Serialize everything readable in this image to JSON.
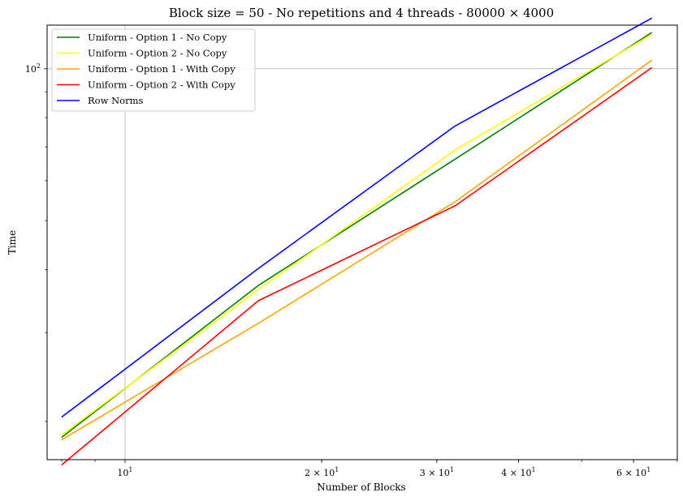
{
  "chart_data": {
    "type": "line",
    "title": "Block size = 50 - No repetitions and 4 threads - 80000 × 4000",
    "xlabel": "Number of Blocks",
    "ylabel": "Time",
    "x_scale": "log",
    "y_scale": "log",
    "xlim": [
      7.6,
      70
    ],
    "ylim": [
      16.8,
      122
    ],
    "grid": true,
    "legend_position": "top-left",
    "x_ticks": [
      {
        "value": 10,
        "label": "10¹",
        "mantissa": "",
        "exp": "1"
      },
      {
        "value": 20,
        "label": "2 × 10¹",
        "mantissa": "2 × ",
        "exp": "1"
      },
      {
        "value": 30,
        "label": "3 × 10¹",
        "mantissa": "3 × ",
        "exp": "1"
      },
      {
        "value": 40,
        "label": "4 × 10¹",
        "mantissa": "4 × ",
        "exp": "1"
      },
      {
        "value": 60,
        "label": "6 × 10¹",
        "mantissa": "6 × ",
        "exp": "1"
      }
    ],
    "y_ticks": [
      {
        "value": 100,
        "label": "10²",
        "mantissa": "",
        "exp": "2"
      }
    ],
    "x": [
      8,
      16,
      32,
      64
    ],
    "series": [
      {
        "name": "Uniform - Option 1 - No Copy",
        "color": "#008000",
        "values": [
          18.6,
          37.2,
          66.2,
          118.0
        ]
      },
      {
        "name": "Uniform - Option 2 - No Copy",
        "color": "#ffff00",
        "values": [
          18.8,
          36.5,
          69.0,
          117.0
        ]
      },
      {
        "name": "Uniform - Option 1 - With Copy",
        "color": "#ffa500",
        "values": [
          18.4,
          31.3,
          54.5,
          104.0
        ]
      },
      {
        "name": "Uniform - Option 2 - With Copy",
        "color": "#ff0000",
        "values": [
          16.4,
          34.7,
          53.5,
          100.5
        ]
      },
      {
        "name": "Row Norms",
        "color": "#0000ff",
        "values": [
          20.4,
          40.2,
          77.0,
          126.0
        ]
      }
    ]
  }
}
